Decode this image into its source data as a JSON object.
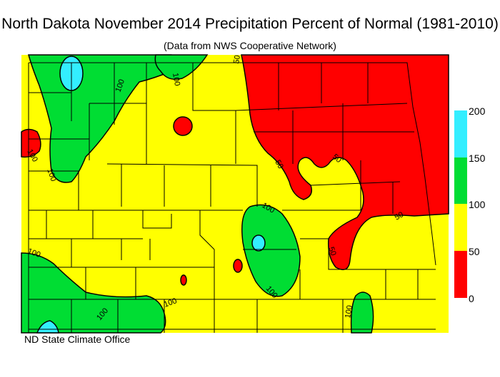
{
  "title": "North Dakota November 2014 Precipitation Percent of Normal (1981-2010)",
  "subtitle": "(Data from NWS Cooperative Network)",
  "credit": "ND State Climate Office",
  "colors": {
    "red": "#ff0000",
    "yellow": "#ffff00",
    "green": "#00dd33",
    "cyan": "#33eeff"
  },
  "legend": {
    "ticks": [
      "200",
      "150",
      "100",
      "50",
      "0"
    ],
    "bins": [
      {
        "range": "150-200",
        "color": "#33eeff"
      },
      {
        "range": "100-150",
        "color": "#00dd33"
      },
      {
        "range": "50-100",
        "color": "#ffff00"
      },
      {
        "range": "0-50",
        "color": "#ff0000"
      }
    ]
  },
  "contour_labels": [
    "100",
    "100",
    "100",
    "100",
    "100",
    "100",
    "100",
    "100",
    "100",
    "100",
    "50",
    "50",
    "50",
    "50",
    "50"
  ]
}
